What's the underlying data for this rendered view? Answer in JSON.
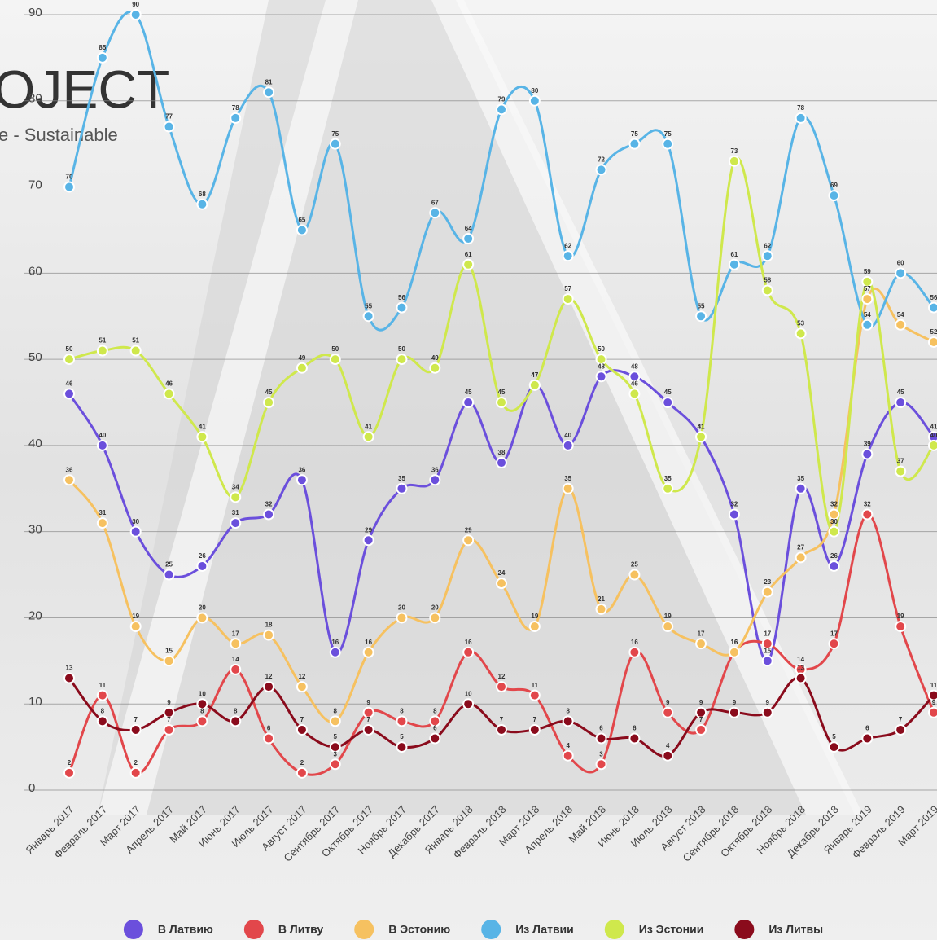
{
  "logo": "OJECT",
  "tagline": "e - Sustainable",
  "chart_data": {
    "type": "line",
    "categories": [
      "Январь 2017",
      "Февраль 2017",
      "Март 2017",
      "Апрель 2017",
      "Май 2017",
      "Июнь 2017",
      "Июль 2017",
      "Август 2017",
      "Сентябрь 2017",
      "Октябрь 2017",
      "Ноябрь 2017",
      "Декабрь 2017",
      "Январь 2018",
      "Февраль 2018",
      "Март 2018",
      "Апрель 2018",
      "Май 2018",
      "Июнь 2018",
      "Июль 2018",
      "Август 2018",
      "Сентябрь 2018",
      "Октябрь 2018",
      "Ноябрь 2018",
      "Декабрь 2018",
      "Январь 2019",
      "Февраль 2019",
      "Март 2019"
    ],
    "series": [
      {
        "name": "В Латвию",
        "color": "#6b4fdc",
        "values": [
          46,
          40,
          30,
          25,
          26,
          31,
          32,
          36,
          16,
          29,
          35,
          36,
          45,
          38,
          47,
          40,
          48,
          48,
          45,
          41,
          32,
          15,
          35,
          26,
          39,
          45,
          41
        ]
      },
      {
        "name": "В Литву",
        "color": "#e2474b",
        "values": [
          2,
          11,
          2,
          7,
          8,
          14,
          6,
          2,
          3,
          9,
          8,
          8,
          16,
          12,
          11,
          4,
          3,
          16,
          9,
          7,
          16,
          17,
          14,
          17,
          32,
          19,
          9
        ]
      },
      {
        "name": "В Эстонию",
        "color": "#f6c160",
        "values": [
          36,
          31,
          19,
          15,
          20,
          17,
          18,
          12,
          8,
          16,
          20,
          20,
          29,
          24,
          19,
          35,
          21,
          25,
          19,
          17,
          16,
          23,
          27,
          32,
          57,
          54,
          52
        ]
      },
      {
        "name": "Из Латвии",
        "color": "#58b4e6",
        "values": [
          70,
          85,
          90,
          77,
          68,
          78,
          81,
          65,
          75,
          55,
          56,
          67,
          64,
          79,
          80,
          62,
          72,
          75,
          75,
          55,
          61,
          62,
          78,
          69,
          54,
          60,
          56
        ]
      },
      {
        "name": "Из Эстонии",
        "color": "#cfe84c",
        "values": [
          50,
          51,
          51,
          46,
          41,
          34,
          45,
          49,
          50,
          41,
          50,
          49,
          61,
          45,
          47,
          57,
          50,
          46,
          35,
          41,
          73,
          58,
          53,
          30,
          59,
          37,
          40
        ]
      },
      {
        "name": "Из Литвы",
        "color": "#8a0b1c",
        "values": [
          13,
          8,
          7,
          9,
          10,
          8,
          12,
          7,
          5,
          7,
          5,
          6,
          10,
          7,
          7,
          8,
          6,
          6,
          4,
          9,
          9,
          9,
          13,
          5,
          6,
          7,
          11
        ]
      }
    ],
    "ylim": [
      0,
      90
    ],
    "yticks": [
      0,
      10,
      20,
      30,
      40,
      50,
      60,
      70,
      80,
      90
    ],
    "grid": true,
    "legend": "bottom"
  }
}
